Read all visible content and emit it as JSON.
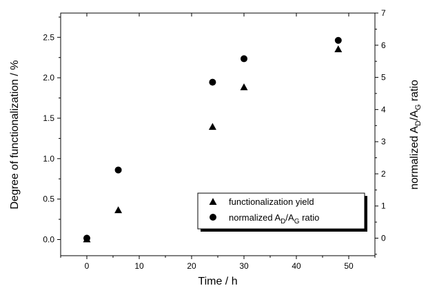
{
  "chart_data": {
    "type": "scatter",
    "xlabel": "Time / h",
    "ylabel": "Degree of functionalization / %",
    "y2label": {
      "prefix": "normalized A",
      "sub1": "D",
      "mid": "/A",
      "sub2": "G",
      "suffix": " ratio"
    },
    "xlim": [
      -5,
      55
    ],
    "ylim": [
      -0.2,
      2.8
    ],
    "y2lim": [
      -0.545,
      7.0
    ],
    "x_ticks": [
      0,
      10,
      20,
      30,
      40,
      50
    ],
    "y_ticks": [
      0.0,
      0.5,
      1.0,
      1.5,
      2.0,
      2.5
    ],
    "y_tick_labels": [
      "0.0",
      "0.5",
      "1.0",
      "1.5",
      "2.0",
      "2.5"
    ],
    "y2_ticks": [
      0,
      1,
      2,
      3,
      4,
      5,
      6,
      7
    ],
    "grid": false,
    "legend_position": "lower-right",
    "series": [
      {
        "name": "functionalization yield",
        "marker": "triangle",
        "axis": "left",
        "x": [
          0,
          6,
          24,
          30,
          48
        ],
        "values": [
          0.0,
          0.36,
          1.39,
          1.88,
          2.35
        ]
      },
      {
        "name_parts": {
          "prefix": "normalized A",
          "sub1": "D",
          "mid": "/A",
          "sub2": "G",
          "suffix": " ratio"
        },
        "marker": "circle",
        "axis": "right",
        "x": [
          0,
          6,
          24,
          30,
          48
        ],
        "values": [
          0.0,
          2.12,
          4.85,
          5.58,
          6.15
        ]
      }
    ]
  }
}
